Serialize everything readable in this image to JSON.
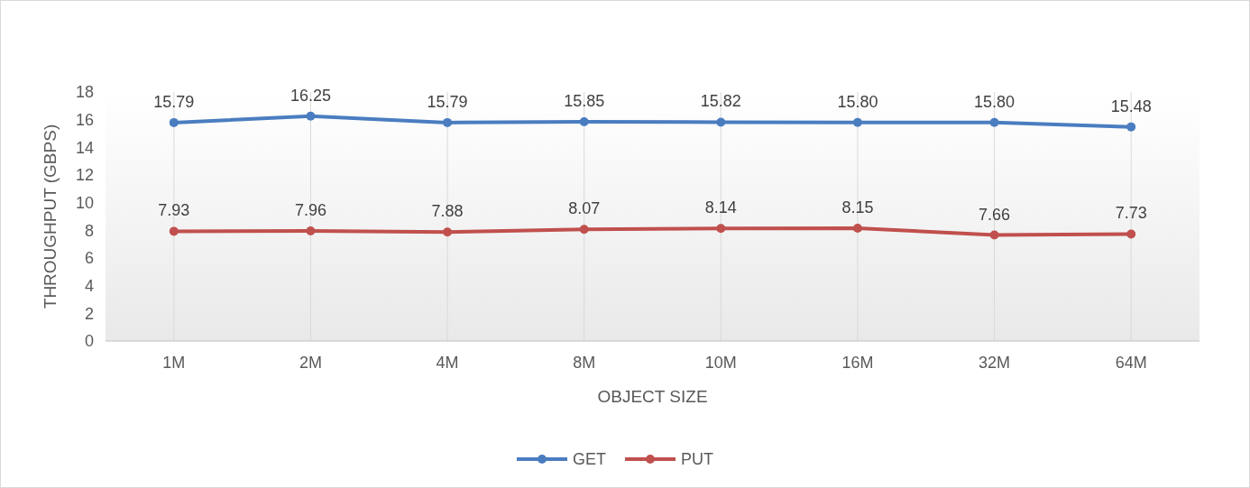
{
  "chart_data": {
    "type": "line",
    "xlabel": "OBJECT SIZE",
    "ylabel": "THROUGHPUT (GBPS)",
    "categories": [
      "1M",
      "2M",
      "4M",
      "8M",
      "10M",
      "16M",
      "32M",
      "64M"
    ],
    "series": [
      {
        "name": "GET",
        "color": "#4a7dc0",
        "values": [
          15.79,
          16.25,
          15.79,
          15.85,
          15.82,
          15.8,
          15.8,
          15.48
        ],
        "value_labels": [
          "15.79",
          "16.25",
          "15.79",
          "15.85",
          "15.82",
          "15.80",
          "15.80",
          "15.48"
        ]
      },
      {
        "name": "PUT",
        "color": "#c0504d",
        "values": [
          7.93,
          7.96,
          7.88,
          8.07,
          8.14,
          8.15,
          7.66,
          7.73
        ],
        "value_labels": [
          "7.93",
          "7.96",
          "7.88",
          "8.07",
          "8.14",
          "8.15",
          "7.66",
          "7.73"
        ]
      }
    ],
    "ylim": [
      0,
      18
    ],
    "yticks": [
      0,
      2,
      4,
      6,
      8,
      10,
      12,
      14,
      16,
      18
    ],
    "grid": "x",
    "legend": "bottom",
    "marker": "circle",
    "line_style": "solid"
  }
}
